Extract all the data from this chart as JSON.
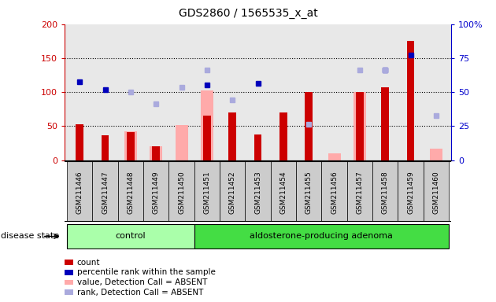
{
  "title": "GDS2860 / 1565535_x_at",
  "samples": [
    "GSM211446",
    "GSM211447",
    "GSM211448",
    "GSM211449",
    "GSM211450",
    "GSM211451",
    "GSM211452",
    "GSM211453",
    "GSM211454",
    "GSM211455",
    "GSM211456",
    "GSM211457",
    "GSM211458",
    "GSM211459",
    "GSM211460"
  ],
  "count": [
    53,
    37,
    41,
    20,
    0,
    65,
    70,
    38,
    70,
    100,
    0,
    100,
    107,
    175,
    0
  ],
  "percentile_rank": [
    115,
    104,
    null,
    null,
    null,
    110,
    null,
    113,
    null,
    null,
    null,
    null,
    133,
    155,
    null
  ],
  "value_absent": [
    null,
    null,
    42,
    20,
    52,
    103,
    null,
    null,
    null,
    null,
    10,
    100,
    null,
    null,
    17
  ],
  "rank_absent": [
    null,
    null,
    100,
    83,
    107,
    133,
    88,
    null,
    null,
    53,
    null,
    133,
    133,
    null,
    65
  ],
  "control_count": 5,
  "adenoma_count": 10,
  "group_labels": [
    "control",
    "aldosterone-producing adenoma"
  ],
  "ylim_left": [
    0,
    200
  ],
  "ylim_right": [
    0,
    100
  ],
  "yticks_left": [
    0,
    50,
    100,
    150,
    200
  ],
  "yticks_right": [
    0,
    25,
    50,
    75,
    100
  ],
  "bar_color_count": "#cc0000",
  "bar_color_absent_value": "#ffaaaa",
  "dot_color_percentile": "#0000bb",
  "dot_color_rank_absent": "#aaaadd",
  "bg_plot": "#e8e8e8",
  "bg_xtick": "#cccccc",
  "bg_control": "#aaffaa",
  "bg_adenoma": "#44dd44",
  "disease_state_label": "disease state",
  "left_axis_color": "#cc0000",
  "right_axis_color": "#0000cc",
  "grid_levels": [
    50,
    100,
    150
  ]
}
